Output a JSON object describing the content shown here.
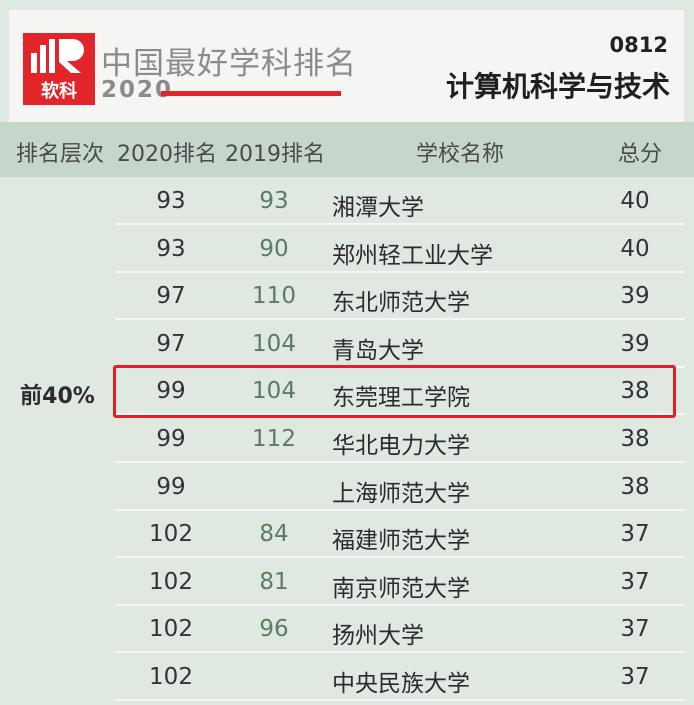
{
  "header": {
    "brand_logo_text": "软科",
    "brand_title": "中国最好学科排名",
    "brand_year": "2020",
    "subject_code": "0812",
    "subject_name": "计算机科学与技术"
  },
  "table": {
    "columns": [
      "排名层次",
      "2020排名",
      "2019排名",
      "学校名称",
      "总分"
    ],
    "tier_label": "前40%",
    "highlighted_row_index": 4,
    "rows": [
      {
        "rank_2020": "93",
        "rank_2019": "93",
        "school": "湘潭大学",
        "score": "40"
      },
      {
        "rank_2020": "93",
        "rank_2019": "90",
        "school": "郑州轻工业大学",
        "score": "40"
      },
      {
        "rank_2020": "97",
        "rank_2019": "110",
        "school": "东北师范大学",
        "score": "39"
      },
      {
        "rank_2020": "97",
        "rank_2019": "104",
        "school": "青岛大学",
        "score": "39"
      },
      {
        "rank_2020": "99",
        "rank_2019": "104",
        "school": "东莞理工学院",
        "score": "38"
      },
      {
        "rank_2020": "99",
        "rank_2019": "112",
        "school": "华北电力大学",
        "score": "38"
      },
      {
        "rank_2020": "99",
        "rank_2019": "",
        "school": "上海师范大学",
        "score": "38"
      },
      {
        "rank_2020": "102",
        "rank_2019": "84",
        "school": "福建师范大学",
        "score": "37"
      },
      {
        "rank_2020": "102",
        "rank_2019": "81",
        "school": "南京师范大学",
        "score": "37"
      },
      {
        "rank_2020": "102",
        "rank_2019": "96",
        "school": "扬州大学",
        "score": "37"
      },
      {
        "rank_2020": "102",
        "rank_2019": "",
        "school": "中央民族大学",
        "score": "37"
      }
    ]
  },
  "colors": {
    "accent_red": "#e1252b",
    "highlight_border": "#e31e24",
    "header_band": "#c6d6cb",
    "body_bg": "#dfe8e1"
  }
}
